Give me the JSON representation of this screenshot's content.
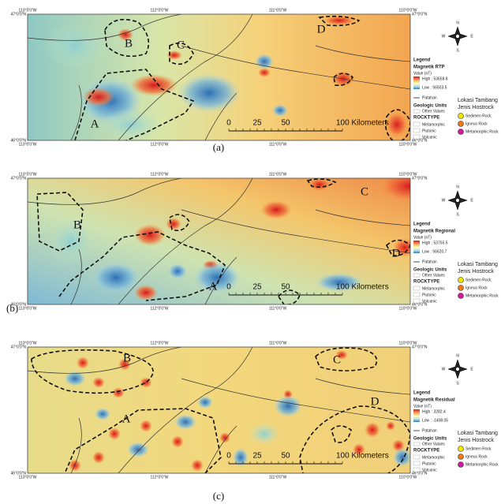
{
  "coords": {
    "lon": [
      "113°0'0\"W",
      "112°0'0\"W",
      "111°0'0\"W",
      "110°0'0\"W"
    ],
    "lat": [
      "47°0'0\"N",
      "46°0'0\"N"
    ]
  },
  "compass": [
    "N",
    "S",
    "E",
    "W"
  ],
  "scale_bar": [
    "0",
    "25",
    "50",
    "100 Kilometers"
  ],
  "legend_common": {
    "heading": "Legend",
    "value_label": "Value (nT)",
    "fault": "Patahan",
    "geologic_units": "Geologic Units",
    "other_values": "Other Values",
    "rocktype": "ROCKTYPE",
    "rocks": [
      "Metamorphic",
      "Plutonic",
      "Volcanic"
    ],
    "mine_title": [
      "Lokasi Tambang",
      "Jenis Hostrock"
    ],
    "hostrocks": [
      "Sedimen Rock",
      "Igneus Rock",
      "Metamorphic Rock"
    ]
  },
  "panels": [
    {
      "caption": "(a)",
      "legend_title": "Magnetik RTP",
      "high": "High : 53658.8",
      "low": "Low : 56503.5",
      "regions": [
        "A",
        "B",
        "C",
        "D"
      ]
    },
    {
      "caption": "(b)",
      "legend_title": "Magnetik Regional",
      "high": "High : 53755.5",
      "low": "Low : 56620.7",
      "regions": [
        "A",
        "B",
        "C",
        "D"
      ]
    },
    {
      "caption": "(c)",
      "legend_title": "Magnetik Residual",
      "high": "High : 3282.4",
      "low": "Low : -1408.05",
      "regions": [
        "A",
        "B",
        "C",
        "D"
      ]
    }
  ]
}
